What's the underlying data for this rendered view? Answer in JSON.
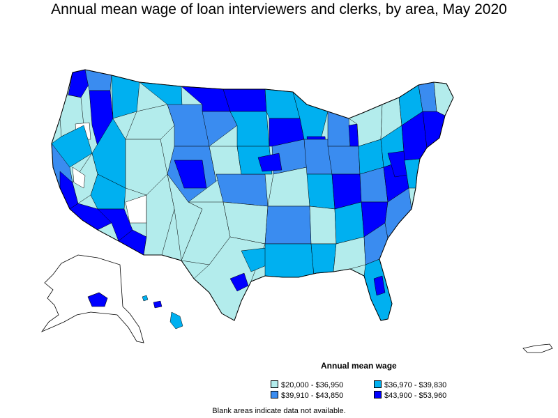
{
  "title": "Annual mean wage of loan interviewers and clerks, by area, May 2020",
  "legend": {
    "title": "Annual mean wage",
    "items": [
      {
        "label": "$20,000 - $36,950",
        "color": "#b3ecec"
      },
      {
        "label": "$36,970 - $39,830",
        "color": "#00b0f0"
      },
      {
        "label": "$39,910 - $43,850",
        "color": "#3a8cf0"
      },
      {
        "label": "$43,900 - $53,960",
        "color": "#0000ff"
      }
    ]
  },
  "footnote": "Blank areas indicate data not available.",
  "colors": {
    "class1": "#b3ecec",
    "class2": "#00b0f0",
    "class3": "#3a8cf0",
    "class4": "#0000ff",
    "blank": "#ffffff",
    "border": "#000000"
  }
}
